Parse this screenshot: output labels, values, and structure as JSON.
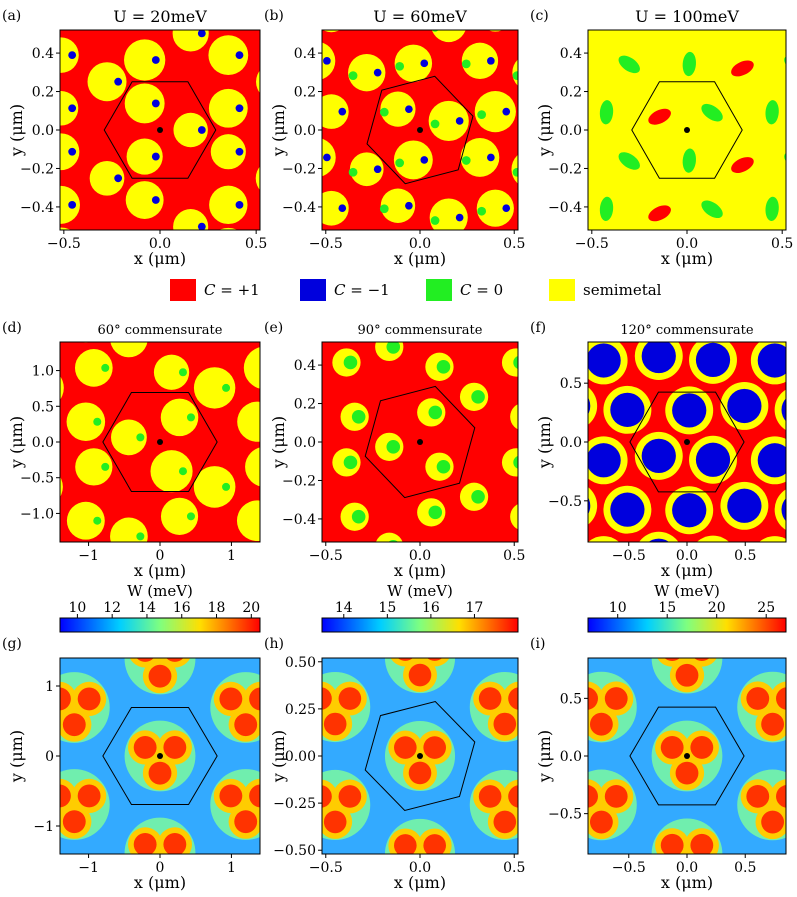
{
  "colors": {
    "C_plus_1": "#ff0000",
    "C_minus_1": "#0000dd",
    "C_zero": "#22ee22",
    "semimetal": "#ffff00",
    "colormap": "jet"
  },
  "legend": [
    {
      "symbol": "C",
      "text": " = +1",
      "color": "#ff0000"
    },
    {
      "symbol": "C",
      "text": " = −1",
      "color": "#0000dd"
    },
    {
      "symbol": "C",
      "text": " = 0",
      "color": "#22ee22"
    },
    {
      "symbol": "",
      "text": "semimetal",
      "color": "#ffff00"
    }
  ],
  "chart_data": [
    {
      "panel": "(a)",
      "type": "heatmap",
      "title": "U = 20meV",
      "xlabel": "x (μm)",
      "ylabel": "y (μm)",
      "xlim": [
        -0.52,
        0.52
      ],
      "ylim": [
        -0.52,
        0.52
      ],
      "xticks": [
        -0.5,
        0.0,
        0.5
      ],
      "yticks": [
        -0.4,
        -0.2,
        0.0,
        0.2,
        0.4
      ],
      "xtick_labels": [
        "−0.5",
        "0.0",
        "0.5"
      ],
      "ytick_labels": [
        "−0.4",
        "−0.2",
        "0.0",
        "0.2",
        "0.4"
      ],
      "categories": [
        "C = +1",
        "C = −1",
        "C = 0",
        "semimetal"
      ],
      "hexagon_radius": 0.29,
      "center": [
        0,
        0
      ]
    },
    {
      "panel": "(b)",
      "type": "heatmap",
      "title": "U = 60meV",
      "xlabel": "x (μm)",
      "ylabel": "y (μm)",
      "xlim": [
        -0.52,
        0.52
      ],
      "ylim": [
        -0.52,
        0.52
      ],
      "xticks": [
        -0.5,
        0.0,
        0.5
      ],
      "yticks": [
        -0.4,
        -0.2,
        0.0,
        0.2,
        0.4
      ],
      "xtick_labels": [
        "−0.5",
        "0.0",
        "0.5"
      ],
      "ytick_labels": [
        "−0.4",
        "−0.2",
        "0.0",
        "0.2",
        "0.4"
      ],
      "categories": [
        "C = +1",
        "C = −1",
        "C = 0",
        "semimetal"
      ],
      "hexagon_radius": 0.29,
      "center": [
        0,
        0
      ]
    },
    {
      "panel": "(c)",
      "type": "heatmap",
      "title": "U = 100meV",
      "xlabel": "x (μm)",
      "ylabel": "y (μm)",
      "xlim": [
        -0.52,
        0.52
      ],
      "ylim": [
        -0.52,
        0.52
      ],
      "xticks": [
        -0.5,
        0.0,
        0.5
      ],
      "yticks": [
        -0.4,
        -0.2,
        0.0,
        0.2,
        0.4
      ],
      "xtick_labels": [
        "−0.5",
        "0.0",
        "0.5"
      ],
      "ytick_labels": [
        "−0.4",
        "−0.2",
        "0.0",
        "0.2",
        "0.4"
      ],
      "categories": [
        "C = +1",
        "C = −1",
        "C = 0",
        "semimetal"
      ],
      "hexagon_radius": 0.29,
      "center": [
        0,
        0
      ]
    },
    {
      "panel": "(d)",
      "type": "heatmap",
      "title": "60° commensurate",
      "xlabel": "x (μm)",
      "ylabel": "y (μm)",
      "xlim": [
        -1.4,
        1.4
      ],
      "ylim": [
        -1.4,
        1.4
      ],
      "xticks": [
        -1,
        0,
        1
      ],
      "yticks": [
        -1.0,
        -0.5,
        0.0,
        0.5,
        1.0
      ],
      "xtick_labels": [
        "−1",
        "0",
        "1"
      ],
      "ytick_labels": [
        "−1.0",
        "−0.5",
        "0.0",
        "0.5",
        "1.0"
      ],
      "categories": [
        "C = +1",
        "C = −1",
        "C = 0",
        "semimetal"
      ],
      "hexagon_radius": 0.8,
      "center": [
        0,
        0
      ]
    },
    {
      "panel": "(e)",
      "type": "heatmap",
      "title": "90° commensurate",
      "xlabel": "x (μm)",
      "ylabel": "y (μm)",
      "xlim": [
        -0.52,
        0.52
      ],
      "ylim": [
        -0.52,
        0.52
      ],
      "xticks": [
        -0.5,
        0.0,
        0.5
      ],
      "yticks": [
        -0.4,
        -0.2,
        0.0,
        0.2,
        0.4
      ],
      "xtick_labels": [
        "−0.5",
        "0.0",
        "0.5"
      ],
      "ytick_labels": [
        "−0.4",
        "−0.2",
        "0.0",
        "0.2",
        "0.4"
      ],
      "categories": [
        "C = +1",
        "C = −1",
        "C = 0",
        "semimetal"
      ],
      "hexagon_radius": 0.3,
      "center": [
        0,
        0
      ]
    },
    {
      "panel": "(f)",
      "type": "heatmap",
      "title": "120° commensurate",
      "xlabel": "x (μm)",
      "ylabel": "y (μm)",
      "xlim": [
        -0.85,
        0.85
      ],
      "ylim": [
        -0.85,
        0.85
      ],
      "xticks": [
        -0.5,
        0.0,
        0.5
      ],
      "yticks": [
        -0.5,
        0.0,
        0.5
      ],
      "xtick_labels": [
        "−0.5",
        "0.0",
        "0.5"
      ],
      "ytick_labels": [
        "−0.5",
        "0.0",
        "0.5"
      ],
      "categories": [
        "C = +1",
        "C = −1",
        "C = 0",
        "semimetal"
      ],
      "hexagon_radius": 0.49,
      "center": [
        0,
        0
      ]
    },
    {
      "panel": "(g)",
      "type": "heatmap",
      "xlabel": "x (μm)",
      "ylabel": "y (μm)",
      "colorbar_label": "W (meV)",
      "colorbar_range": [
        9,
        20.5
      ],
      "colorbar_ticks": [
        10,
        12,
        14,
        16,
        18,
        20
      ],
      "xlim": [
        -1.4,
        1.4
      ],
      "ylim": [
        -1.4,
        1.4
      ],
      "xticks": [
        -1,
        0,
        1
      ],
      "yticks": [
        -1,
        0,
        1
      ],
      "xtick_labels": [
        "−1",
        "0",
        "1"
      ],
      "ytick_labels": [
        "−1",
        "0",
        "1"
      ],
      "hexagon_radius": 0.8,
      "center": [
        0,
        0
      ]
    },
    {
      "panel": "(h)",
      "type": "heatmap",
      "xlabel": "x (μm)",
      "ylabel": "y (μm)",
      "colorbar_label": "W (meV)",
      "colorbar_range": [
        13.5,
        18
      ],
      "colorbar_ticks": [
        14,
        15,
        16,
        17
      ],
      "xlim": [
        -0.52,
        0.52
      ],
      "ylim": [
        -0.52,
        0.52
      ],
      "xticks": [
        -0.5,
        0.0,
        0.5
      ],
      "yticks": [
        -0.5,
        -0.25,
        0.0,
        0.25,
        0.5
      ],
      "xtick_labels": [
        "−0.5",
        "0.0",
        "0.5"
      ],
      "ytick_labels": [
        "−0.50",
        "−0.25",
        "0.00",
        "0.25",
        "0.50"
      ],
      "hexagon_radius": 0.3,
      "center": [
        0,
        0
      ]
    },
    {
      "panel": "(i)",
      "type": "heatmap",
      "xlabel": "x (μm)",
      "ylabel": "y (μm)",
      "colorbar_label": "W (meV)",
      "colorbar_range": [
        7,
        27
      ],
      "colorbar_ticks": [
        10,
        15,
        20,
        25
      ],
      "xlim": [
        -0.85,
        0.85
      ],
      "ylim": [
        -0.85,
        0.85
      ],
      "xticks": [
        -0.5,
        0.0,
        0.5
      ],
      "yticks": [
        -0.5,
        0.0,
        0.5
      ],
      "xtick_labels": [
        "−0.5",
        "0.0",
        "0.5"
      ],
      "ytick_labels": [
        "−0.5",
        "0.0",
        "0.5"
      ],
      "hexagon_radius": 0.49,
      "center": [
        0,
        0
      ]
    }
  ]
}
